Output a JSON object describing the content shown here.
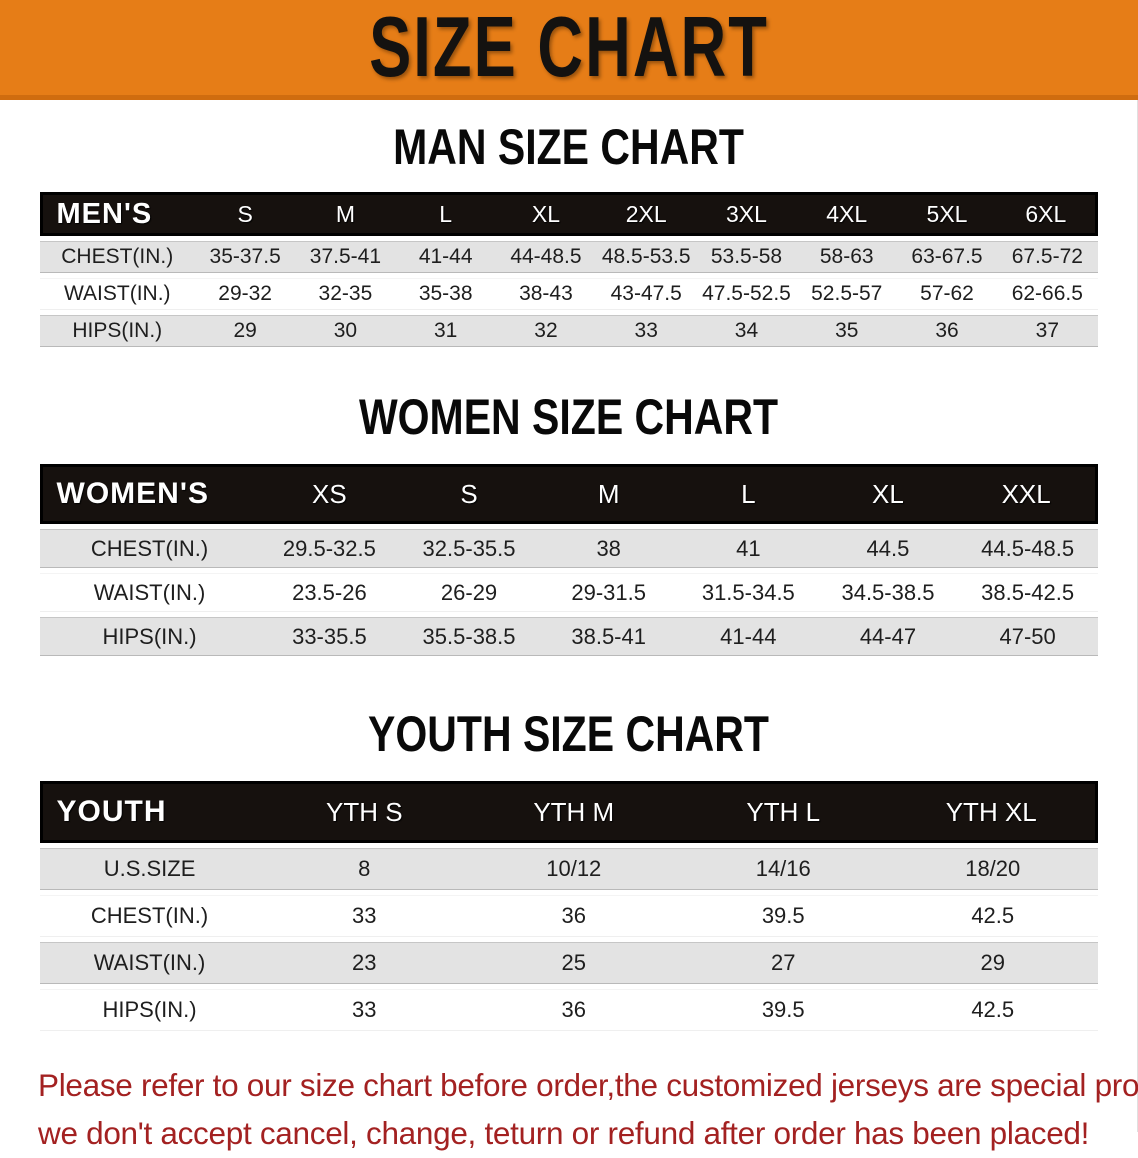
{
  "banner": {
    "title": "SIZE CHART",
    "bg_color": "#e67d17"
  },
  "sections": [
    {
      "id": "man",
      "heading": "MAN SIZE CHART",
      "table": {
        "group_label": "MEN'S",
        "columns": [
          "S",
          "M",
          "L",
          "XL",
          "2XL",
          "3XL",
          "4XL",
          "5XL",
          "6XL"
        ],
        "rows": [
          {
            "label": "CHEST(IN.)",
            "values": [
              "35-37.5",
              "37.5-41",
              "41-44",
              "44-48.5",
              "48.5-53.5",
              "53.5-58",
              "58-63",
              "63-67.5",
              "67.5-72"
            ]
          },
          {
            "label": "WAIST(IN.)",
            "values": [
              "29-32",
              "32-35",
              "35-38",
              "38-43",
              "43-47.5",
              "47.5-52.5",
              "52.5-57",
              "57-62",
              "62-66.5"
            ]
          },
          {
            "label": "HIPS(IN.)",
            "values": [
              "29",
              "30",
              "31",
              "32",
              "33",
              "34",
              "35",
              "36",
              "37"
            ]
          }
        ]
      }
    },
    {
      "id": "women",
      "heading": "WOMEN SIZE CHART",
      "table": {
        "group_label": "WOMEN'S",
        "columns": [
          "XS",
          "S",
          "M",
          "L",
          "XL",
          "XXL"
        ],
        "rows": [
          {
            "label": "CHEST(IN.)",
            "values": [
              "29.5-32.5",
              "32.5-35.5",
              "38",
              "41",
              "44.5",
              "44.5-48.5"
            ]
          },
          {
            "label": "WAIST(IN.)",
            "values": [
              "23.5-26",
              "26-29",
              "29-31.5",
              "31.5-34.5",
              "34.5-38.5",
              "38.5-42.5"
            ]
          },
          {
            "label": "HIPS(IN.)",
            "values": [
              "33-35.5",
              "35.5-38.5",
              "38.5-41",
              "41-44",
              "44-47",
              "47-50"
            ]
          }
        ]
      }
    },
    {
      "id": "youth",
      "heading": "YOUTH SIZE CHART",
      "table": {
        "group_label": "YOUTH",
        "columns": [
          "YTH S",
          "YTH M",
          "YTH L",
          "YTH XL"
        ],
        "rows": [
          {
            "label": "U.S.SIZE",
            "values": [
              "8",
              "10/12",
              "14/16",
              "18/20"
            ]
          },
          {
            "label": "CHEST(IN.)",
            "values": [
              "33",
              "36",
              "39.5",
              "42.5"
            ]
          },
          {
            "label": "WAIST(IN.)",
            "values": [
              "23",
              "25",
              "27",
              "29"
            ]
          },
          {
            "label": "HIPS(IN.)",
            "values": [
              "33",
              "36",
              "39.5",
              "42.5"
            ]
          }
        ]
      }
    }
  ],
  "footer": {
    "line1": "Please refer to our size chart before order,the customized jerseys are special products,",
    "line2": "we don't accept cancel, change, teturn or refund after order has been placed!",
    "text_color": "#a32121"
  }
}
